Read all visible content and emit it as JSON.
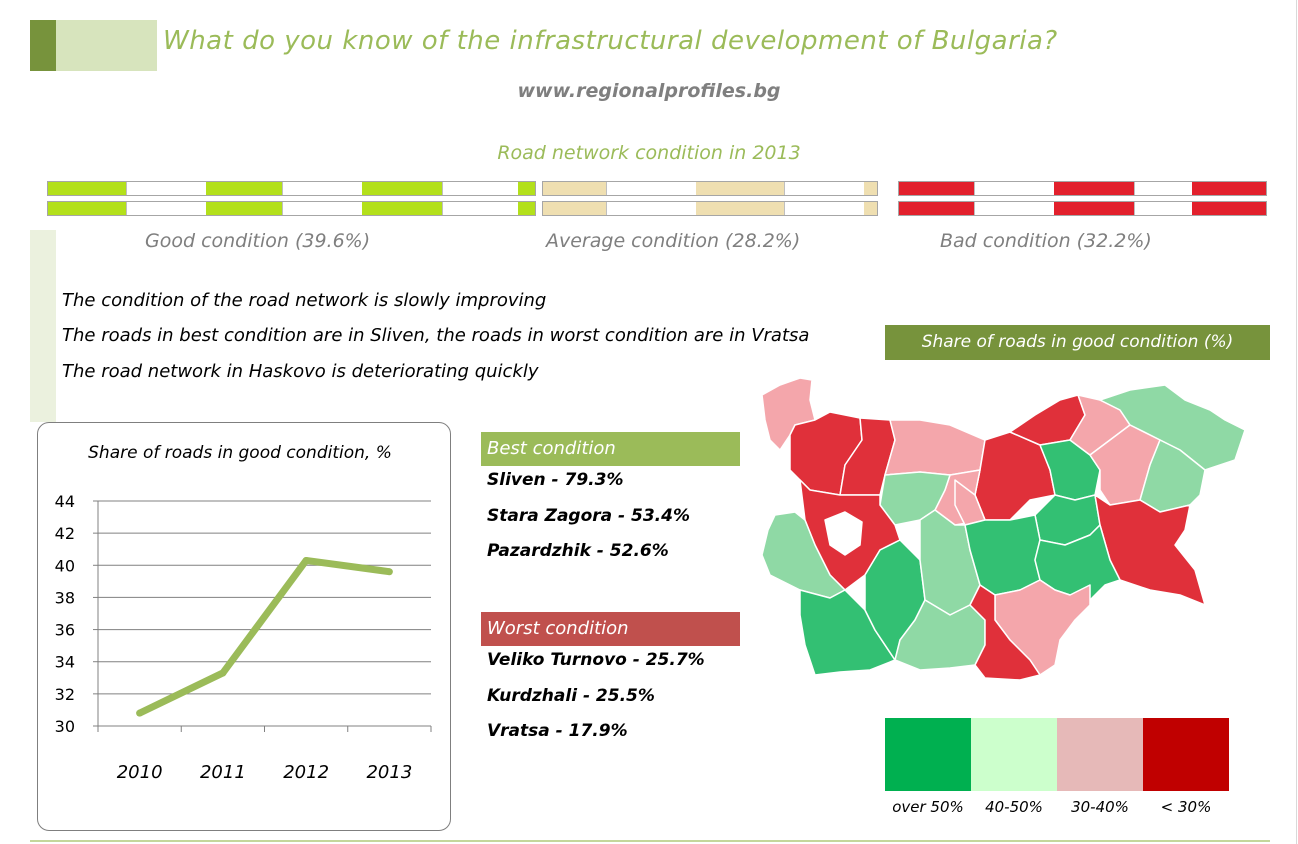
{
  "header": {
    "title": "What do you know of the infrastructural development of Bulgaria?",
    "url": "www.regionalprofiles.bg",
    "subtitle": "Road network condition in 2013"
  },
  "conditions": [
    {
      "label": "Good condition (39.6%)",
      "color": "#b3e01b"
    },
    {
      "label": "Average condition (28.2%)",
      "color": "#efdfb1"
    },
    {
      "label": "Bad condition (32.2%)",
      "color": "#e2202c"
    }
  ],
  "bullets": [
    "The condition of the road network is slowly improving",
    "The roads in best condition are in Sliven, the roads in worst condition are in Vratsa",
    "The road network in Haskovo is deteriorating quickly"
  ],
  "map": {
    "title": "Share of roads in good condition (%)",
    "legend": [
      {
        "label": "over 50%",
        "color": "#00b050"
      },
      {
        "label": "40-50%",
        "color": "#ccffcc"
      },
      {
        "label": "30-40%",
        "color": "#e6b9b8"
      },
      {
        "label": "< 30%",
        "color": "#c00000"
      }
    ]
  },
  "best": {
    "header": "Best condition",
    "color": "#9bbb59",
    "items": [
      "Sliven - 79.3%",
      "Stara Zagora - 53.4%",
      "Pazardzhik - 52.6%"
    ]
  },
  "worst": {
    "header": "Worst condition",
    "color": "#c0504d",
    "items": [
      "Veliko Turnovo - 25.7%",
      "Kurdzhali - 25.5%",
      "Vratsa - 17.9%"
    ]
  },
  "chart_data": {
    "type": "line",
    "title": "Share of roads in good condition, %",
    "categories": [
      "2010",
      "2011",
      "2012",
      "2013"
    ],
    "series": [
      {
        "values": [
          30.8,
          33.3,
          40.3,
          39.6
        ],
        "color": "#9bbb59"
      }
    ],
    "ylim": [
      30,
      44
    ],
    "yticks": [
      30,
      32,
      34,
      36,
      38,
      40,
      42,
      44
    ],
    "grid": true
  }
}
